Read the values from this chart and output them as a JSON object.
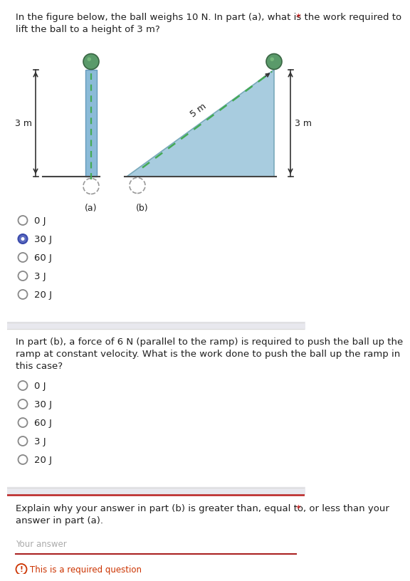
{
  "title_q1": "In the figure below, the ball weighs 10 N. In part (a), what is the work required to\nlift the ball to a height of 3 m?",
  "title_q1_asterisk": "*",
  "q1_options": [
    "0 J",
    "30 J",
    "60 J",
    "3 J",
    "20 J"
  ],
  "q1_selected": 1,
  "title_q2": "In part (b), a force of 6 N (parallel to the ramp) is required to push the ball up the\nramp at constant velocity. What is the work done to push the ball up the ramp in\nthis case?",
  "q2_options": [
    "0 J",
    "30 J",
    "60 J",
    "3 J",
    "20 J"
  ],
  "q2_selected": -1,
  "title_q3": "Explain why your answer in part (b) is greater than, equal to, or less than your\nanswer in part (a).",
  "title_q3_asterisk": "*",
  "your_answer_label": "Your answer",
  "required_msg": "This is a required question",
  "bg_color": "#ffffff",
  "text_color": "#202020",
  "radio_color": "#888888",
  "selected_radio_fill": "#5c6bc0",
  "selected_radio_border": "#3949ab",
  "divider_color": "#d8d8d8",
  "divider_bg": "#e8e8ee",
  "label_a": "(a)",
  "label_b": "(b)",
  "height_label": "3 m",
  "ramp_length_label": "5 m",
  "ramp_height_label": "3 m",
  "ball_color_dark": "#3a6644",
  "ball_color_light": "#5a9a6a",
  "pillar_color": "#8bbbd8",
  "pillar_border": "#6699bb",
  "ramp_color": "#a8ccdf",
  "ramp_border": "#7aaabb",
  "dashed_color": "#44aa55",
  "arrow_color": "#333333",
  "font_size_q": 9.5,
  "font_size_radio": 9.5,
  "font_size_label": 9.0,
  "font_size_dim": 9.0,
  "font_size_small": 8.5,
  "underline_color": "#aa2222",
  "required_icon_color": "#cc3300"
}
